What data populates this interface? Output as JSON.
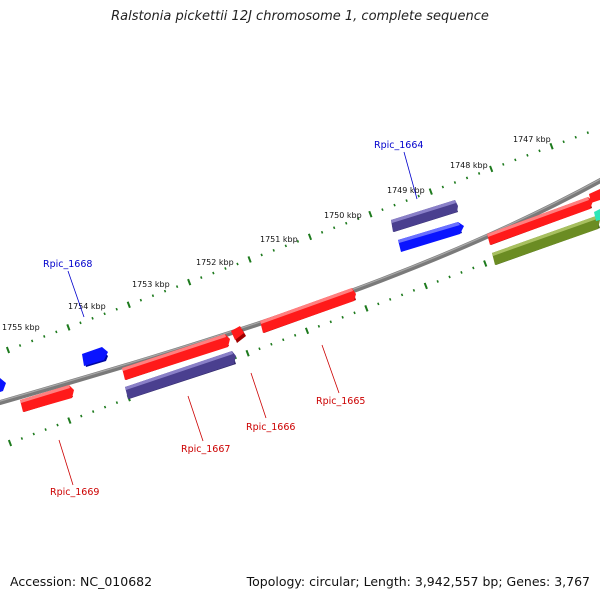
{
  "title": "Ralstonia pickettii 12J chromosome 1, complete sequence",
  "footer": {
    "accession": "Accession: NC_010682",
    "summary": "Topology: circular; Length: 3,942,557 bp; Genes: 3,767"
  },
  "scale_labels": [
    "1747 kbp",
    "1748 kbp",
    "1749 kbp",
    "1750 kbp",
    "1751 kbp",
    "1752 kbp",
    "1753 kbp",
    "1754 kbp",
    "1755 kbp"
  ],
  "gene_labels": [
    {
      "text": "Rpic_1664",
      "color": "#0000cc"
    },
    {
      "text": "Rpic_1668",
      "color": "#0000cc"
    },
    {
      "text": "Rpic_1665",
      "color": "#cc0000"
    },
    {
      "text": "Rpic_1666",
      "color": "#cc0000"
    },
    {
      "text": "Rpic_1667",
      "color": "#cc0000"
    },
    {
      "text": "Rpic_1669",
      "color": "#cc0000"
    }
  ],
  "colors": {
    "backbone": "#808080",
    "gene_red": "#ff1a1a",
    "gene_blue": "#0a14ff",
    "gene_purple": "#4a3f8f",
    "gene_olive": "#6b8c23",
    "gene_teal": "#2ee6b8",
    "tick_green": "#1d7a1d"
  }
}
